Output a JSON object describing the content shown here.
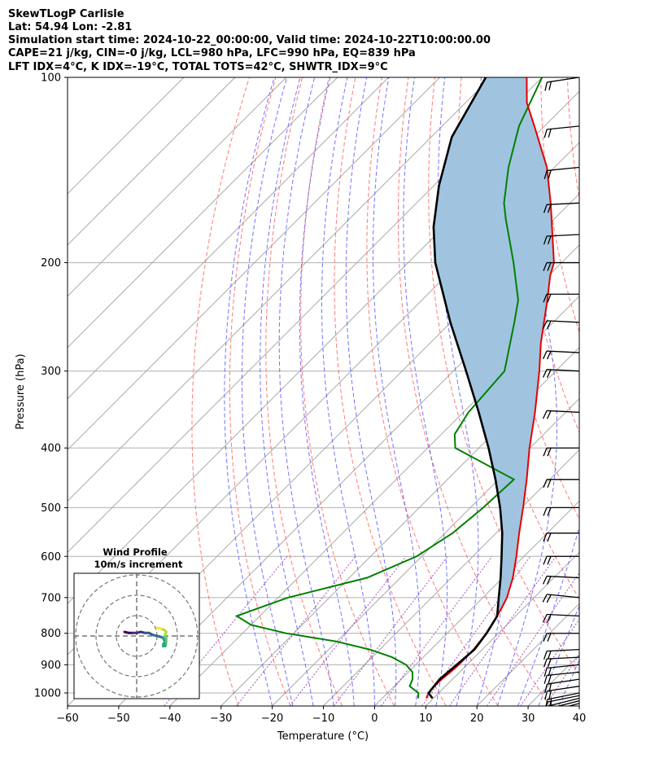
{
  "header": {
    "line1": "SkewTLogP Carlisle",
    "line2": "Lat: 54.94   Lon: -2.81",
    "line3": "Simulation start time: 2024-10-22_00:00:00, Valid time: 2024-10-22T10:00:00.00",
    "line4": "CAPE=21 j/kg, CIN=-0 j/kg, LCL=980 hPa, LFC=990 hPa, EQ=839 hPa",
    "line5": "LFT IDX=4°C, K IDX=-19°C, TOTAL TOTS=42°C, SHWTR_IDX=9°C"
  },
  "chart_data": {
    "type": "skew-t",
    "xlabel": "Temperature (°C)",
    "ylabel": "Pressure (hPa)",
    "xlim": [
      -60,
      40
    ],
    "ylim": [
      1050,
      100
    ],
    "y_scale": "log",
    "x_ticks": [
      "−60",
      "−50",
      "−40",
      "−30",
      "−20",
      "−10",
      "0",
      "10",
      "20",
      "30",
      "40"
    ],
    "y_ticks": [
      "1000",
      "900",
      "800",
      "700",
      "600",
      "500",
      "400",
      "300",
      "200",
      "100"
    ],
    "grid": true,
    "colors": {
      "temperature": "#e60000",
      "dewpoint": "#008000",
      "parcel": "#000000",
      "cape_fill": "#a0c4df",
      "dry_adiabats": "#ff6060",
      "moist_adiabats": "#5a5aff",
      "mixing_ratio": "#9a3fb5",
      "isotherms": "#a0a0a0"
    },
    "series": [
      {
        "key": "temperature",
        "p": [
          1020,
          1000,
          975,
          950,
          925,
          900,
          875,
          850,
          825,
          800,
          775,
          750,
          725,
          700,
          650,
          600,
          550,
          500,
          450,
          400,
          350,
          300,
          270,
          250,
          230,
          210,
          200,
          180,
          160,
          140,
          120,
          110,
          100
        ],
        "t": [
          8.6,
          8.0,
          7.8,
          7.9,
          8.2,
          8.4,
          8.4,
          8.3,
          8.0,
          7.6,
          7.0,
          6.4,
          5.6,
          4.7,
          2.0,
          -1.5,
          -5.5,
          -9.7,
          -14.5,
          -20.1,
          -26.0,
          -33.2,
          -38.4,
          -41.8,
          -45.5,
          -49.7,
          -51.5,
          -57.3,
          -63.8,
          -71.5,
          -82.0,
          -88.0,
          -93.0
        ]
      },
      {
        "key": "dewpoint",
        "p": [
          1020,
          1000,
          975,
          950,
          925,
          900,
          875,
          850,
          825,
          800,
          775,
          750,
          725,
          700,
          650,
          600,
          550,
          500,
          450,
          400,
          380,
          350,
          300,
          250,
          230,
          200,
          170,
          160,
          140,
          120,
          100
        ],
        "t": [
          7.0,
          6.0,
          3.0,
          2.2,
          0.8,
          -1.9,
          -6.1,
          -12.0,
          -20.0,
          -31.5,
          -40.0,
          -44.5,
          -41.4,
          -38.1,
          -26.5,
          -21.0,
          -18.5,
          -17.5,
          -17.0,
          -34.6,
          -37.4,
          -39.0,
          -40.0,
          -47.6,
          -51.2,
          -59.4,
          -69.4,
          -72.9,
          -79.0,
          -85.0,
          -90.0
        ]
      },
      {
        "key": "parcel",
        "p": [
          1020,
          1000,
          950,
          900,
          850,
          800,
          750,
          700,
          650,
          600,
          550,
          500,
          450,
          400,
          350,
          300,
          250,
          200,
          175,
          150,
          125,
          100
        ],
        "t": [
          9.8,
          8.0,
          7.5,
          8.0,
          8.5,
          7.7,
          6.4,
          3.1,
          -0.4,
          -4.4,
          -8.8,
          -14.2,
          -20.6,
          -28.1,
          -37.0,
          -47.5,
          -60.1,
          -74.7,
          -82.0,
          -89.0,
          -96.0,
          -101.0
        ]
      }
    ],
    "wind_barbs": {
      "p": [
        1040,
        1030,
        1020,
        1010,
        1000,
        975,
        950,
        925,
        900,
        875,
        850,
        800,
        750,
        700,
        650,
        600,
        550,
        500,
        450,
        400,
        350,
        300,
        280,
        250,
        225,
        200,
        180,
        160,
        140,
        120,
        100
      ],
      "u": [
        20,
        20,
        20,
        20,
        20,
        20,
        20,
        20,
        20,
        20,
        20,
        20,
        20,
        20,
        20,
        20,
        20,
        20,
        20,
        20,
        20,
        20,
        20,
        20,
        20,
        20,
        20,
        20,
        20,
        20,
        20
      ],
      "v": [
        5,
        5,
        5,
        4,
        4,
        3,
        3,
        2,
        2,
        1,
        1,
        0,
        -1,
        -2,
        -1,
        0,
        0,
        0,
        0,
        0,
        -1,
        -1,
        -1,
        -1,
        0,
        0,
        1,
        1,
        2,
        2,
        3
      ]
    }
  },
  "hodograph": {
    "title": "Wind Profile",
    "subtitle": "10m/s increment",
    "rings_ms": [
      10,
      20,
      30
    ],
    "colormap": "viridis",
    "points": [
      {
        "u": -6,
        "v": 2
      },
      {
        "u": -4,
        "v": 1.5
      },
      {
        "u": -2,
        "v": 1.5
      },
      {
        "u": 0,
        "v": 1.5
      },
      {
        "u": 2,
        "v": 2
      },
      {
        "u": 4,
        "v": 1.5
      },
      {
        "u": 6,
        "v": 1.5
      },
      {
        "u": 8,
        "v": 0.5
      },
      {
        "u": 10,
        "v": 0
      },
      {
        "u": 12,
        "v": -0.5
      },
      {
        "u": 13,
        "v": -1
      },
      {
        "u": 13.5,
        "v": -2
      },
      {
        "u": 14,
        "v": -3
      },
      {
        "u": 13,
        "v": -4
      },
      {
        "u": 13,
        "v": -5
      },
      {
        "u": 14,
        "v": -5
      },
      {
        "u": 14.5,
        "v": -3
      },
      {
        "u": 14.5,
        "v": -1
      },
      {
        "u": 14,
        "v": 0.5
      },
      {
        "u": 14.5,
        "v": 2
      },
      {
        "u": 13.5,
        "v": 3
      },
      {
        "u": 12,
        "v": 3.5
      },
      {
        "u": 11,
        "v": 3.8
      },
      {
        "u": 10,
        "v": 4
      }
    ]
  }
}
